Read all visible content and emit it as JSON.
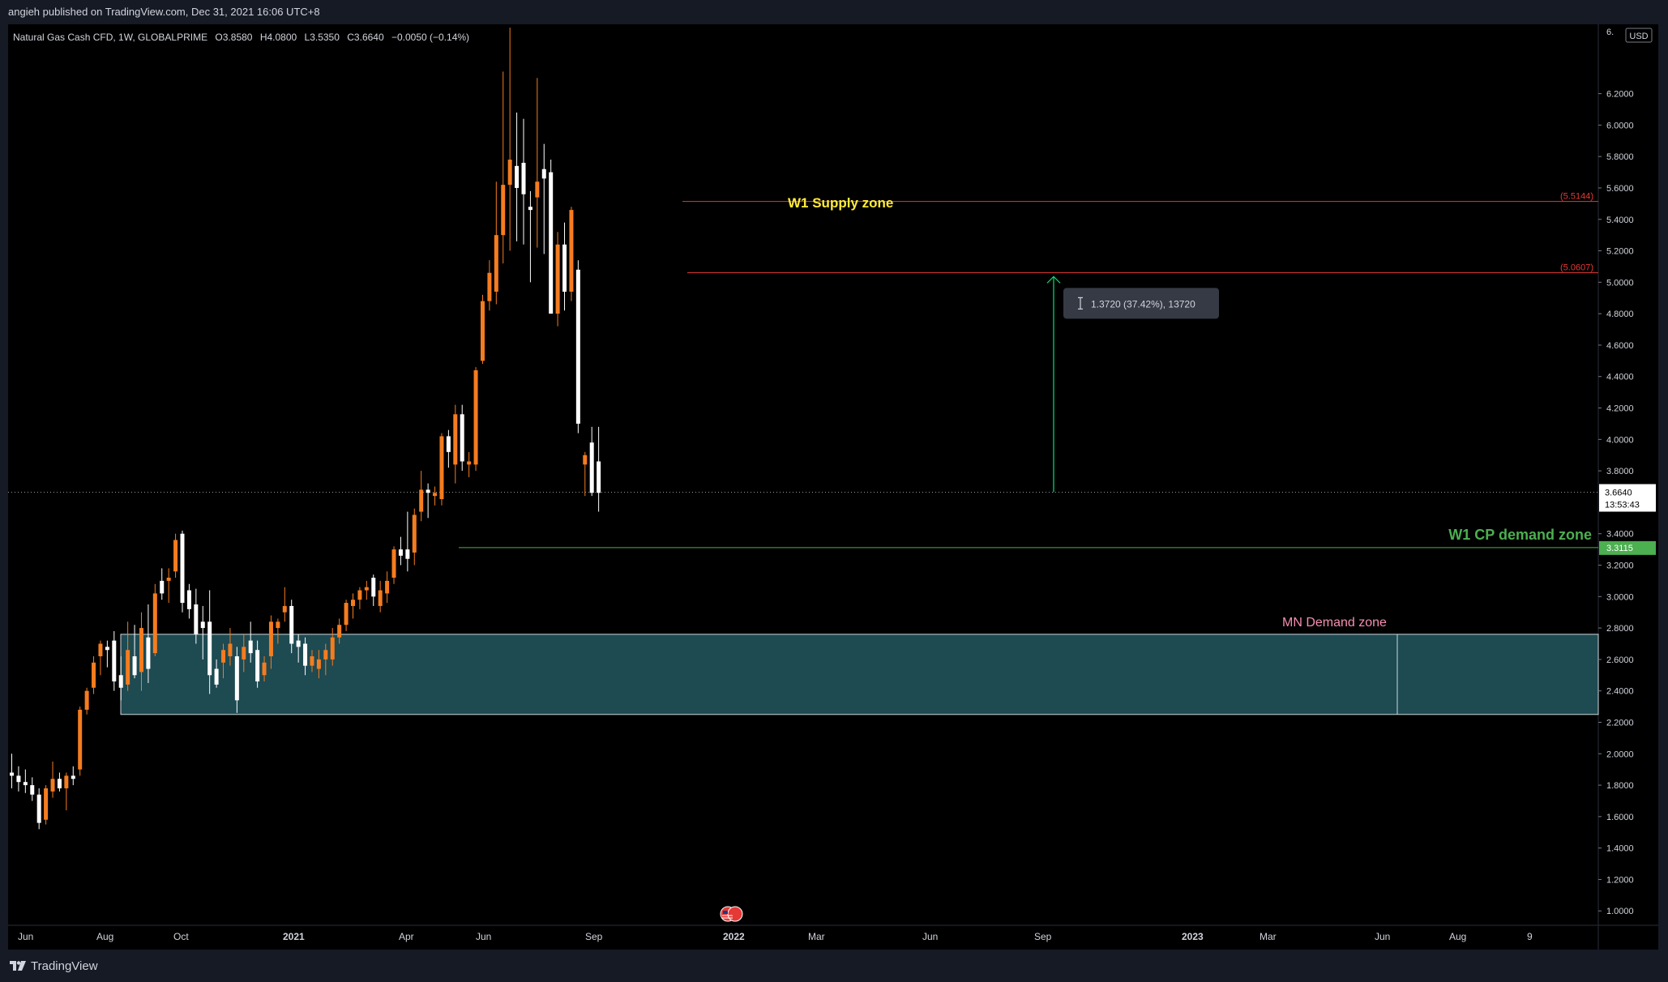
{
  "header": {
    "published": "angieh published on TradingView.com, Dec 31, 2021 16:06 UTC+8"
  },
  "footer": {
    "brand": "TradingView",
    "logo_icon": "tradingview-logo-icon"
  },
  "legend": {
    "symbol": "Natural Gas Cash CFD, 1W, GLOBALPRIME",
    "open": "O3.8580",
    "high": "H4.0800",
    "low": "L3.5350",
    "close": "C3.6640",
    "change": "−0.0050 (−0.14%)"
  },
  "price_axis": {
    "currency": "USD",
    "top_tick_partial": "6.",
    "ticks": [
      "6.2000",
      "6.0000",
      "5.8000",
      "5.6000",
      "5.4000",
      "5.2000",
      "5.0000",
      "4.8000",
      "4.6000",
      "4.4000",
      "4.2000",
      "4.0000",
      "3.8000",
      "3.4000",
      "3.2000",
      "3.0000",
      "2.8000",
      "2.6000",
      "2.4000",
      "2.2000",
      "2.0000",
      "1.8000",
      "1.6000",
      "1.4000",
      "1.2000",
      "1.0000"
    ],
    "current_price": "3.6640",
    "countdown": "13:53:43",
    "cp_line_label": "3.3115"
  },
  "time_axis": {
    "labels": [
      "Jun",
      "Aug",
      "Oct",
      "2021",
      "Apr",
      "Jun",
      "Sep",
      "2022",
      "Mar",
      "Jun",
      "Sep",
      "2023",
      "Mar",
      "Jun",
      "Aug",
      "9"
    ]
  },
  "annotations": {
    "supply_zone": "W1 Supply zone",
    "cp_demand_zone": "W1 CP demand zone",
    "mn_demand_zone": "MN Demand zone",
    "level_upper": "(5.5144)",
    "level_lower": "(5.0607)",
    "measure": "1.3720 (37.42%), 13720",
    "flag_icon": "us-flag-events-icon"
  },
  "colors": {
    "background": "#000000",
    "bull": "#f57c1f",
    "bear": "#ffffff",
    "supply_line": "#e53935",
    "supply_text": "#ffeb3b",
    "cp_line": "#4caf50",
    "cp_text": "#4caf50",
    "demand_fill": "#1e4a52",
    "demand_text": "#f48fb1",
    "measure_arrow": "#00e676"
  },
  "chart_data": {
    "type": "candlestick",
    "title": "Natural Gas Cash CFD, 1W, GLOBALPRIME",
    "ylim": [
      0.96,
      6.6
    ],
    "levels": [
      {
        "name": "supply_upper",
        "value": 5.5144
      },
      {
        "name": "supply_lower",
        "value": 5.0607
      },
      {
        "name": "cp_demand",
        "value": 3.3115
      },
      {
        "name": "current",
        "value": 3.664
      }
    ],
    "zones": [
      {
        "name": "mn_demand",
        "low": 2.25,
        "high": 2.76
      }
    ],
    "measure": {
      "from": 3.664,
      "to": 5.036,
      "delta": 1.372,
      "percent": 37.42
    },
    "candles": [
      {
        "o": 1.88,
        "h": 2.0,
        "l": 1.78,
        "c": 1.86
      },
      {
        "o": 1.86,
        "h": 1.92,
        "l": 1.76,
        "c": 1.82
      },
      {
        "o": 1.82,
        "h": 1.9,
        "l": 1.75,
        "c": 1.8
      },
      {
        "o": 1.8,
        "h": 1.85,
        "l": 1.7,
        "c": 1.74
      },
      {
        "o": 1.74,
        "h": 1.78,
        "l": 1.52,
        "c": 1.56
      },
      {
        "o": 1.58,
        "h": 1.8,
        "l": 1.55,
        "c": 1.78
      },
      {
        "o": 1.76,
        "h": 1.95,
        "l": 1.72,
        "c": 1.84
      },
      {
        "o": 1.84,
        "h": 1.88,
        "l": 1.76,
        "c": 1.78
      },
      {
        "o": 1.78,
        "h": 1.88,
        "l": 1.64,
        "c": 1.86
      },
      {
        "o": 1.86,
        "h": 1.92,
        "l": 1.8,
        "c": 1.84
      },
      {
        "o": 1.9,
        "h": 2.3,
        "l": 1.86,
        "c": 2.28
      },
      {
        "o": 2.28,
        "h": 2.42,
        "l": 2.25,
        "c": 2.4
      },
      {
        "o": 2.42,
        "h": 2.62,
        "l": 2.38,
        "c": 2.58
      },
      {
        "o": 2.62,
        "h": 2.72,
        "l": 2.5,
        "c": 2.7
      },
      {
        "o": 2.68,
        "h": 2.72,
        "l": 2.55,
        "c": 2.66
      },
      {
        "o": 2.72,
        "h": 2.78,
        "l": 2.4,
        "c": 2.46
      },
      {
        "o": 2.5,
        "h": 2.62,
        "l": 2.34,
        "c": 2.42
      },
      {
        "o": 2.44,
        "h": 2.84,
        "l": 2.4,
        "c": 2.66
      },
      {
        "o": 2.62,
        "h": 2.82,
        "l": 2.48,
        "c": 2.5
      },
      {
        "o": 2.52,
        "h": 2.9,
        "l": 2.4,
        "c": 2.8
      },
      {
        "o": 2.74,
        "h": 2.95,
        "l": 2.45,
        "c": 2.54
      },
      {
        "o": 2.64,
        "h": 3.08,
        "l": 2.62,
        "c": 3.02
      },
      {
        "o": 3.1,
        "h": 3.18,
        "l": 2.98,
        "c": 3.02
      },
      {
        "o": 3.1,
        "h": 3.18,
        "l": 2.96,
        "c": 3.12
      },
      {
        "o": 3.16,
        "h": 3.4,
        "l": 3.12,
        "c": 3.36
      },
      {
        "o": 3.4,
        "h": 3.42,
        "l": 2.9,
        "c": 2.96
      },
      {
        "o": 3.04,
        "h": 3.08,
        "l": 2.86,
        "c": 2.92
      },
      {
        "o": 2.95,
        "h": 3.05,
        "l": 2.7,
        "c": 2.76
      },
      {
        "o": 2.84,
        "h": 2.94,
        "l": 2.6,
        "c": 2.8
      },
      {
        "o": 2.84,
        "h": 3.04,
        "l": 2.38,
        "c": 2.5
      },
      {
        "o": 2.54,
        "h": 2.6,
        "l": 2.42,
        "c": 2.44
      },
      {
        "o": 2.58,
        "h": 2.7,
        "l": 2.48,
        "c": 2.66
      },
      {
        "o": 2.62,
        "h": 2.8,
        "l": 2.56,
        "c": 2.7
      },
      {
        "o": 2.62,
        "h": 2.68,
        "l": 2.26,
        "c": 2.34
      },
      {
        "o": 2.6,
        "h": 2.76,
        "l": 2.52,
        "c": 2.68
      },
      {
        "o": 2.72,
        "h": 2.84,
        "l": 2.58,
        "c": 2.64
      },
      {
        "o": 2.66,
        "h": 2.72,
        "l": 2.42,
        "c": 2.46
      },
      {
        "o": 2.5,
        "h": 2.62,
        "l": 2.46,
        "c": 2.58
      },
      {
        "o": 2.62,
        "h": 2.88,
        "l": 2.54,
        "c": 2.84
      },
      {
        "o": 2.8,
        "h": 2.86,
        "l": 2.7,
        "c": 2.84
      },
      {
        "o": 2.9,
        "h": 3.06,
        "l": 2.84,
        "c": 2.94
      },
      {
        "o": 2.94,
        "h": 2.98,
        "l": 2.64,
        "c": 2.7
      },
      {
        "o": 2.72,
        "h": 2.76,
        "l": 2.58,
        "c": 2.68
      },
      {
        "o": 2.7,
        "h": 2.74,
        "l": 2.5,
        "c": 2.56
      },
      {
        "o": 2.56,
        "h": 2.66,
        "l": 2.52,
        "c": 2.62
      },
      {
        "o": 2.54,
        "h": 2.66,
        "l": 2.48,
        "c": 2.6
      },
      {
        "o": 2.6,
        "h": 2.7,
        "l": 2.5,
        "c": 2.66
      },
      {
        "o": 2.6,
        "h": 2.8,
        "l": 2.56,
        "c": 2.74
      },
      {
        "o": 2.74,
        "h": 2.86,
        "l": 2.7,
        "c": 2.82
      },
      {
        "o": 2.82,
        "h": 2.98,
        "l": 2.78,
        "c": 2.96
      },
      {
        "o": 2.94,
        "h": 3.02,
        "l": 2.86,
        "c": 2.98
      },
      {
        "o": 2.98,
        "h": 3.06,
        "l": 2.92,
        "c": 3.04
      },
      {
        "o": 3.04,
        "h": 3.1,
        "l": 2.98,
        "c": 3.06
      },
      {
        "o": 3.12,
        "h": 3.14,
        "l": 2.94,
        "c": 3.0
      },
      {
        "o": 2.94,
        "h": 3.1,
        "l": 2.9,
        "c": 3.04
      },
      {
        "o": 3.02,
        "h": 3.16,
        "l": 2.96,
        "c": 3.1
      },
      {
        "o": 3.12,
        "h": 3.32,
        "l": 3.08,
        "c": 3.3
      },
      {
        "o": 3.3,
        "h": 3.38,
        "l": 3.2,
        "c": 3.26
      },
      {
        "o": 3.3,
        "h": 3.54,
        "l": 3.16,
        "c": 3.24
      },
      {
        "o": 3.28,
        "h": 3.56,
        "l": 3.2,
        "c": 3.52
      },
      {
        "o": 3.54,
        "h": 3.8,
        "l": 3.48,
        "c": 3.68
      },
      {
        "o": 3.68,
        "h": 3.72,
        "l": 3.5,
        "c": 3.66
      },
      {
        "o": 3.64,
        "h": 3.7,
        "l": 3.58,
        "c": 3.66
      },
      {
        "o": 3.62,
        "h": 4.04,
        "l": 3.58,
        "c": 4.02
      },
      {
        "o": 4.02,
        "h": 4.06,
        "l": 3.82,
        "c": 3.92
      },
      {
        "o": 3.84,
        "h": 4.22,
        "l": 3.72,
        "c": 4.16
      },
      {
        "o": 4.16,
        "h": 4.22,
        "l": 3.8,
        "c": 3.86
      },
      {
        "o": 3.84,
        "h": 3.92,
        "l": 3.76,
        "c": 3.86
      },
      {
        "o": 3.84,
        "h": 4.46,
        "l": 3.8,
        "c": 4.44
      },
      {
        "o": 4.5,
        "h": 4.92,
        "l": 4.48,
        "c": 4.88
      },
      {
        "o": 4.88,
        "h": 5.14,
        "l": 4.82,
        "c": 5.06
      },
      {
        "o": 4.94,
        "h": 5.64,
        "l": 4.86,
        "c": 5.3
      },
      {
        "o": 5.3,
        "h": 6.34,
        "l": 5.12,
        "c": 5.62
      },
      {
        "o": 5.62,
        "h": 6.62,
        "l": 5.2,
        "c": 5.78
      },
      {
        "o": 5.74,
        "h": 6.08,
        "l": 5.26,
        "c": 5.6
      },
      {
        "o": 5.76,
        "h": 6.04,
        "l": 5.24,
        "c": 5.56
      },
      {
        "o": 5.48,
        "h": 5.58,
        "l": 5.0,
        "c": 5.46
      },
      {
        "o": 5.54,
        "h": 6.3,
        "l": 5.22,
        "c": 5.64
      },
      {
        "o": 5.72,
        "h": 5.88,
        "l": 5.18,
        "c": 5.66
      },
      {
        "o": 5.7,
        "h": 5.78,
        "l": 4.82,
        "c": 4.8
      },
      {
        "o": 4.8,
        "h": 5.32,
        "l": 4.72,
        "c": 5.24
      },
      {
        "o": 5.24,
        "h": 5.38,
        "l": 4.82,
        "c": 4.94
      },
      {
        "o": 4.94,
        "h": 5.48,
        "l": 4.88,
        "c": 5.46
      },
      {
        "o": 5.08,
        "h": 5.14,
        "l": 4.04,
        "c": 4.1
      },
      {
        "o": 3.84,
        "h": 3.92,
        "l": 3.64,
        "c": 3.9
      },
      {
        "o": 3.98,
        "h": 4.08,
        "l": 3.64,
        "c": 3.66
      },
      {
        "o": 3.86,
        "h": 4.08,
        "l": 3.54,
        "c": 3.66
      }
    ]
  }
}
